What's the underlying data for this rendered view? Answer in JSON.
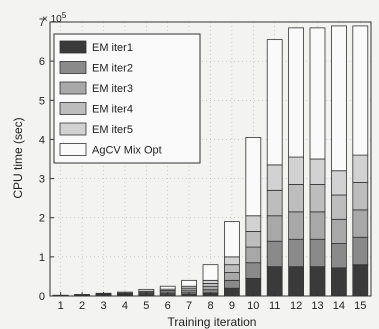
{
  "chart_data": {
    "type": "bar",
    "stacked": true,
    "title": "",
    "xlabel": "Training iteration",
    "ylabel": "CPU time (sec)",
    "y_multiplier_label": "× 10",
    "y_multiplier_exponent": "5",
    "ylim": [
      0,
      7
    ],
    "yticks": [
      0,
      1,
      2,
      3,
      4,
      5,
      6,
      7
    ],
    "categories": [
      "1",
      "2",
      "3",
      "4",
      "5",
      "6",
      "7",
      "8",
      "9",
      "10",
      "11",
      "12",
      "13",
      "14",
      "15"
    ],
    "legend_position": "top-left",
    "grid": true,
    "series": [
      {
        "name": "EM iter1",
        "color": "#3a3a3a",
        "values": [
          0.003,
          0.006,
          0.01,
          0.015,
          0.025,
          0.035,
          0.05,
          0.08,
          0.2,
          0.45,
          0.75,
          0.75,
          0.75,
          0.72,
          0.8
        ]
      },
      {
        "name": "EM iter2",
        "color": "#8a8a8a",
        "values": [
          0.003,
          0.006,
          0.01,
          0.015,
          0.025,
          0.035,
          0.05,
          0.08,
          0.2,
          0.4,
          0.65,
          0.7,
          0.7,
          0.62,
          0.7
        ]
      },
      {
        "name": "EM iter3",
        "color": "#a8a8a8",
        "values": [
          0.003,
          0.006,
          0.01,
          0.015,
          0.025,
          0.035,
          0.05,
          0.08,
          0.2,
          0.4,
          0.65,
          0.7,
          0.7,
          0.62,
          0.7
        ]
      },
      {
        "name": "EM iter4",
        "color": "#bdbdbd",
        "values": [
          0.003,
          0.006,
          0.01,
          0.015,
          0.025,
          0.035,
          0.05,
          0.08,
          0.2,
          0.4,
          0.65,
          0.7,
          0.7,
          0.62,
          0.7
        ]
      },
      {
        "name": "EM iter5",
        "color": "#d2d2d2",
        "values": [
          0.003,
          0.006,
          0.01,
          0.015,
          0.025,
          0.035,
          0.05,
          0.08,
          0.2,
          0.4,
          0.65,
          0.7,
          0.65,
          0.62,
          0.7
        ]
      },
      {
        "name": "AgCV Mix Opt",
        "color": "#fafafa",
        "values": [
          0.005,
          0.01,
          0.02,
          0.025,
          0.045,
          0.075,
          0.15,
          0.4,
          0.9,
          2.0,
          3.2,
          3.3,
          3.35,
          3.7,
          3.3
        ]
      }
    ]
  }
}
